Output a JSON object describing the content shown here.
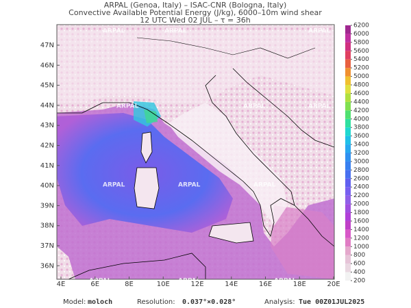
{
  "header": {
    "lines": [
      "ARPAL (Genoa, Italy)  –  ISAC-CNR (Bologna, Italy)",
      "Convective Available Potential Energy (J/kg), 6000–10m wind shear",
      "12 UTC Wed 02 JUL  –  τ = 36h"
    ]
  },
  "map": {
    "watermark": "ARPAL",
    "lat_labels": [
      "47N",
      "46N",
      "45N",
      "44N",
      "43N",
      "42N",
      "41N",
      "40N",
      "39N",
      "38N",
      "37N",
      "36N"
    ],
    "lon_labels": [
      "4E",
      "6E",
      "8E",
      "10E",
      "12E",
      "14E",
      "16E",
      "18E",
      "20E"
    ]
  },
  "colorbar": {
    "labels": [
      200,
      400,
      600,
      800,
      1000,
      1200,
      1400,
      1600,
      1800,
      2000,
      2200,
      2400,
      2600,
      2800,
      3000,
      3200,
      3400,
      3600,
      3800,
      4000,
      4200,
      4400,
      4600,
      4800,
      5000,
      5200,
      5400,
      5600,
      5800,
      6000,
      6200
    ],
    "colors": [
      "#f2f2f2",
      "#ead8e2",
      "#e6c4d8",
      "#e4a8cc",
      "#e07cc4",
      "#d858c8",
      "#c040c8",
      "#b040d8",
      "#a050e0",
      "#9060e8",
      "#7860f0",
      "#6060f0",
      "#4870f0",
      "#3880f0",
      "#3090f0",
      "#28a8f0",
      "#20c0e8",
      "#20d8d0",
      "#30e0a0",
      "#50e070",
      "#80e050",
      "#b0e040",
      "#e0e040",
      "#f0c030",
      "#f09030",
      "#e86040",
      "#e04060",
      "#d03080",
      "#c030a0",
      "#a02890"
    ]
  },
  "footer": {
    "model_label": "Model:",
    "model": "moloch",
    "resolution_label": "Resolution:",
    "resolution": "0.037°×0.028°",
    "analysis_label": "Analysis:",
    "analysis": "Tue 00Z01JUL2025"
  }
}
